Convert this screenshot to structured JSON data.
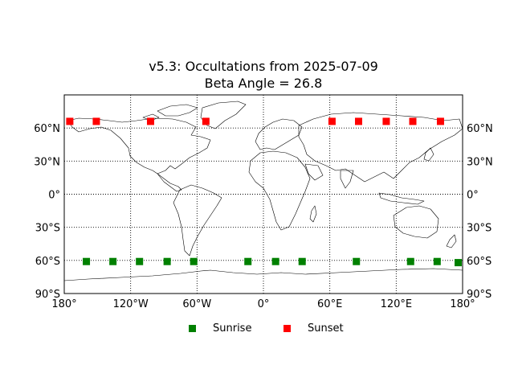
{
  "title": "v5.3: Occultations from 2025-07-09",
  "subtitle": "Beta Angle = 26.8",
  "map": {
    "projection": "plate-carree",
    "xlim": [
      -180,
      180
    ],
    "ylim": [
      -90,
      90
    ],
    "grid_style": "dotted",
    "coastline_color": "#000000"
  },
  "chart_data": {
    "type": "scatter",
    "title": "v5.3: Occultations from 2025-07-09",
    "subtitle": "Beta Angle = 26.8",
    "xlim": [
      -180,
      180
    ],
    "ylim": [
      -90,
      90
    ],
    "grid": true,
    "legend_position": "bottom-center",
    "x_ticks": [
      {
        "value": -180,
        "label": "180°"
      },
      {
        "value": -120,
        "label": "120°W"
      },
      {
        "value": -60,
        "label": "60°W"
      },
      {
        "value": 0,
        "label": "0°"
      },
      {
        "value": 60,
        "label": "60°E"
      },
      {
        "value": 120,
        "label": "120°E"
      },
      {
        "value": 180,
        "label": "180°"
      }
    ],
    "y_ticks": [
      {
        "value": 60,
        "label": "60°N"
      },
      {
        "value": 30,
        "label": "30°N"
      },
      {
        "value": 0,
        "label": "0°"
      },
      {
        "value": -30,
        "label": "30°S"
      },
      {
        "value": -60,
        "label": "60°S"
      },
      {
        "value": -90,
        "label": "90°S"
      }
    ],
    "series": [
      {
        "name": "Sunrise",
        "color": "#008000",
        "marker": "square",
        "points": [
          {
            "lon": -160,
            "lat": -61
          },
          {
            "lon": -136,
            "lat": -61
          },
          {
            "lon": -112,
            "lat": -61
          },
          {
            "lon": -87,
            "lat": -61
          },
          {
            "lon": -63,
            "lat": -61
          },
          {
            "lon": -14,
            "lat": -61
          },
          {
            "lon": 11,
            "lat": -61
          },
          {
            "lon": 35,
            "lat": -61
          },
          {
            "lon": 84,
            "lat": -61
          },
          {
            "lon": 133,
            "lat": -61
          },
          {
            "lon": 157,
            "lat": -61
          },
          {
            "lon": 176,
            "lat": -62
          }
        ]
      },
      {
        "name": "Sunset",
        "color": "#ff0000",
        "marker": "square",
        "points": [
          {
            "lon": -175,
            "lat": 66
          },
          {
            "lon": -151,
            "lat": 66
          },
          {
            "lon": -102,
            "lat": 66
          },
          {
            "lon": -52,
            "lat": 66
          },
          {
            "lon": 62,
            "lat": 66
          },
          {
            "lon": 86,
            "lat": 66
          },
          {
            "lon": 111,
            "lat": 66
          },
          {
            "lon": 135,
            "lat": 66
          },
          {
            "lon": 160,
            "lat": 66
          }
        ]
      }
    ]
  }
}
